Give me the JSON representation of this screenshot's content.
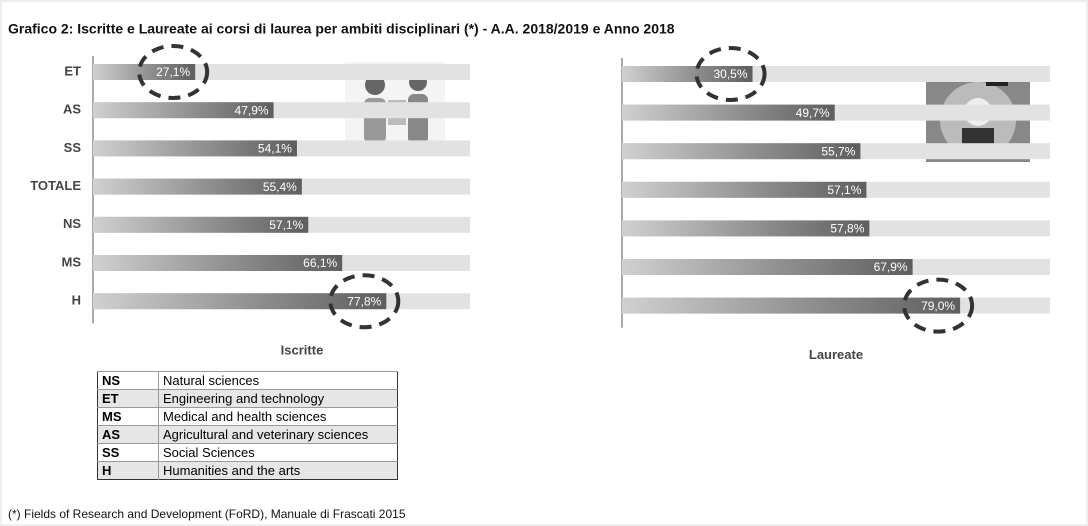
{
  "title": "Grafico 2: Iscritte e Laureate ai corsi di laurea per ambiti disciplinari (*) - A.A. 2018/2019 e Anno 2018",
  "footnote": "(*) Fields of Research and Development (FoRD), Manuale di Frascati 2015",
  "legend": [
    [
      "NS",
      "Natural sciences"
    ],
    [
      "ET",
      "Engineering and technology"
    ],
    [
      "MS",
      "Medical and health sciences"
    ],
    [
      "AS",
      "Agricultural and veterinary sciences"
    ],
    [
      "SS",
      "Social Sciences"
    ],
    [
      "H",
      "Humanities and the arts"
    ]
  ],
  "chart_data": [
    {
      "type": "bar",
      "orientation": "horizontal",
      "xlabel": "Iscritte",
      "categories": [
        "ET",
        "AS",
        "SS",
        "TOTALE",
        "NS",
        "MS",
        "H"
      ],
      "values": [
        27.1,
        47.9,
        54.1,
        55.4,
        57.1,
        66.1,
        77.8
      ],
      "value_labels": [
        "27,1%",
        "47,9%",
        "54,1%",
        "55,4%",
        "57,1%",
        "66,1%",
        "77,8%"
      ],
      "xlim": [
        0,
        100
      ],
      "grid": false,
      "color": "#6a6a6a"
    },
    {
      "type": "bar",
      "orientation": "horizontal",
      "xlabel": "Laureate",
      "categories": [
        null,
        null,
        null,
        null,
        null,
        null,
        null
      ],
      "values": [
        30.5,
        49.7,
        55.7,
        57.1,
        57.8,
        67.9,
        79.0
      ],
      "value_labels": [
        "30,5%",
        "49,7%",
        "55,7%",
        "57,1%",
        "57,8%",
        "67,9%",
        "79,0%"
      ],
      "xlim": [
        0,
        100
      ],
      "grid": false,
      "color": "#6a6a6a"
    }
  ]
}
